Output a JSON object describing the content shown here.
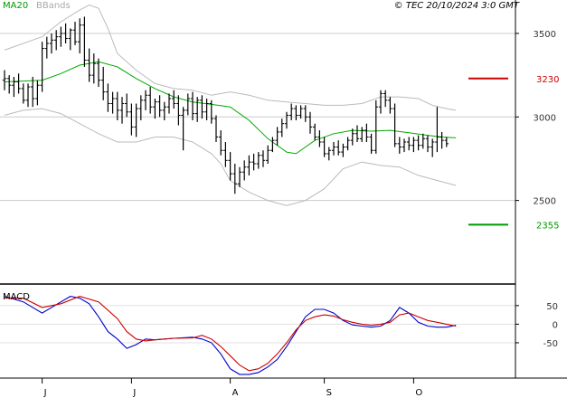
{
  "header": {
    "indicator_main": "MA20",
    "indicator_secondary": "BBands",
    "copyright": "© TEC 20/10/2024 3:0 GMT",
    "macd_label": "MACD"
  },
  "chart_data": [
    {
      "type": "line",
      "name": "price-panel",
      "x_tick_labels": [
        "J",
        "J",
        "A",
        "S",
        "O"
      ],
      "y_tick_labels": [
        "3500",
        "3000",
        "2500"
      ],
      "y_ticks": [
        3500,
        3000,
        2500
      ],
      "ylim": [
        2000,
        3700
      ],
      "levels": [
        {
          "value": 3230,
          "label": "3230",
          "color": "#cc0000"
        },
        {
          "value": 2355,
          "label": "2355",
          "color": "#009900"
        }
      ],
      "colors": {
        "candles": "#000000",
        "ma20": "#00aa00",
        "bbands": "#bbbbbb"
      },
      "ohlc": [
        [
          3220,
          3280,
          3160,
          3230
        ],
        [
          3230,
          3250,
          3140,
          3190
        ],
        [
          3190,
          3240,
          3120,
          3210
        ],
        [
          3210,
          3260,
          3140,
          3170
        ],
        [
          3170,
          3200,
          3080,
          3100
        ],
        [
          3100,
          3200,
          3060,
          3180
        ],
        [
          3180,
          3240,
          3060,
          3110
        ],
        [
          3110,
          3220,
          3070,
          3190
        ],
        [
          3190,
          3450,
          3150,
          3410
        ],
        [
          3410,
          3480,
          3350,
          3440
        ],
        [
          3440,
          3500,
          3380,
          3460
        ],
        [
          3460,
          3520,
          3400,
          3480
        ],
        [
          3480,
          3540,
          3420,
          3500
        ],
        [
          3500,
          3560,
          3440,
          3470
        ],
        [
          3470,
          3530,
          3400,
          3520
        ],
        [
          3520,
          3570,
          3430,
          3450
        ],
        [
          3450,
          3590,
          3380,
          3550
        ],
        [
          3550,
          3600,
          3300,
          3340
        ],
        [
          3340,
          3410,
          3210,
          3250
        ],
        [
          3250,
          3380,
          3200,
          3320
        ],
        [
          3320,
          3350,
          3180,
          3220
        ],
        [
          3220,
          3300,
          3100,
          3150
        ],
        [
          3150,
          3200,
          3030,
          3080
        ],
        [
          3080,
          3150,
          3020,
          3110
        ],
        [
          3110,
          3150,
          2980,
          3040
        ],
        [
          3040,
          3120,
          2960,
          3080
        ],
        [
          3080,
          3140,
          3000,
          3030
        ],
        [
          3030,
          3080,
          2890,
          2940
        ],
        [
          2940,
          3080,
          2880,
          3050
        ],
        [
          3050,
          3130,
          2980,
          3100
        ],
        [
          3100,
          3160,
          3040,
          3130
        ],
        [
          3130,
          3180,
          3020,
          3060
        ],
        [
          3060,
          3110,
          2990,
          3090
        ],
        [
          3090,
          3130,
          3000,
          3040
        ],
        [
          3040,
          3090,
          2980,
          3060
        ],
        [
          3060,
          3140,
          3020,
          3110
        ],
        [
          3110,
          3160,
          3050,
          3080
        ],
        [
          3080,
          3130,
          2950,
          3010
        ],
        [
          3010,
          3060,
          2800,
          3040
        ],
        [
          3040,
          3140,
          3010,
          3110
        ],
        [
          3110,
          3150,
          2980,
          3020
        ],
        [
          3020,
          3120,
          2970,
          3100
        ],
        [
          3100,
          3130,
          2990,
          3030
        ],
        [
          3030,
          3110,
          2980,
          3080
        ],
        [
          3080,
          3100,
          2960,
          2990
        ],
        [
          2990,
          3010,
          2850,
          2880
        ],
        [
          2880,
          2920,
          2770,
          2800
        ],
        [
          2800,
          2850,
          2700,
          2740
        ],
        [
          2740,
          2790,
          2620,
          2660
        ],
        [
          2660,
          2720,
          2540,
          2600
        ],
        [
          2600,
          2700,
          2580,
          2670
        ],
        [
          2670,
          2740,
          2620,
          2700
        ],
        [
          2700,
          2770,
          2650,
          2730
        ],
        [
          2730,
          2780,
          2680,
          2720
        ],
        [
          2720,
          2790,
          2690,
          2770
        ],
        [
          2770,
          2800,
          2700,
          2740
        ],
        [
          2740,
          2830,
          2720,
          2800
        ],
        [
          2800,
          2880,
          2790,
          2860
        ],
        [
          2860,
          2940,
          2830,
          2910
        ],
        [
          2910,
          2990,
          2880,
          2960
        ],
        [
          2960,
          3030,
          2930,
          3010
        ],
        [
          3010,
          3080,
          2980,
          3050
        ],
        [
          3050,
          3070,
          2980,
          3010
        ],
        [
          3010,
          3070,
          2990,
          3050
        ],
        [
          3050,
          3070,
          2970,
          3000
        ],
        [
          3000,
          3030,
          2900,
          2940
        ],
        [
          2940,
          2960,
          2860,
          2880
        ],
        [
          2880,
          2920,
          2820,
          2850
        ],
        [
          2850,
          2880,
          2760,
          2780
        ],
        [
          2780,
          2820,
          2740,
          2800
        ],
        [
          2800,
          2850,
          2770,
          2820
        ],
        [
          2820,
          2860,
          2770,
          2790
        ],
        [
          2790,
          2840,
          2760,
          2820
        ],
        [
          2820,
          2880,
          2800,
          2860
        ],
        [
          2860,
          2930,
          2830,
          2900
        ],
        [
          2900,
          2950,
          2850,
          2870
        ],
        [
          2870,
          2940,
          2850,
          2920
        ],
        [
          2920,
          2960,
          2850,
          2880
        ],
        [
          2880,
          2900,
          2780,
          2800
        ],
        [
          2800,
          3100,
          2780,
          3060
        ],
        [
          3060,
          3160,
          3020,
          3140
        ],
        [
          3140,
          3160,
          3060,
          3100
        ],
        [
          3100,
          3120,
          3020,
          3050
        ],
        [
          3050,
          3080,
          2820,
          2840
        ],
        [
          2840,
          2880,
          2780,
          2820
        ],
        [
          2820,
          2870,
          2790,
          2850
        ],
        [
          2850,
          2880,
          2800,
          2830
        ],
        [
          2830,
          2880,
          2790,
          2860
        ],
        [
          2860,
          2890,
          2800,
          2830
        ],
        [
          2830,
          2900,
          2810,
          2870
        ],
        [
          2870,
          2890,
          2790,
          2820
        ],
        [
          2820,
          2870,
          2760,
          2850
        ],
        [
          2850,
          3060,
          2790,
          2880
        ],
        [
          2880,
          2910,
          2810,
          2860
        ],
        [
          2860,
          2880,
          2820,
          2840
        ]
      ],
      "ma20": [
        [
          0,
          3210
        ],
        [
          8,
          3220
        ],
        [
          12,
          3260
        ],
        [
          16,
          3310
        ],
        [
          20,
          3330
        ],
        [
          24,
          3300
        ],
        [
          28,
          3230
        ],
        [
          32,
          3170
        ],
        [
          36,
          3120
        ],
        [
          40,
          3090
        ],
        [
          44,
          3075
        ],
        [
          48,
          3060
        ],
        [
          52,
          2980
        ],
        [
          56,
          2870
        ],
        [
          60,
          2790
        ],
        [
          62,
          2780
        ],
        [
          66,
          2860
        ],
        [
          70,
          2900
        ],
        [
          74,
          2920
        ],
        [
          78,
          2915
        ],
        [
          82,
          2920
        ],
        [
          86,
          2905
        ],
        [
          90,
          2890
        ],
        [
          93,
          2880
        ],
        [
          96,
          2875
        ]
      ],
      "bb_upper": [
        [
          0,
          3400
        ],
        [
          8,
          3480
        ],
        [
          12,
          3570
        ],
        [
          16,
          3640
        ],
        [
          18,
          3670
        ],
        [
          20,
          3650
        ],
        [
          22,
          3530
        ],
        [
          24,
          3380
        ],
        [
          28,
          3280
        ],
        [
          32,
          3200
        ],
        [
          36,
          3170
        ],
        [
          40,
          3160
        ],
        [
          44,
          3130
        ],
        [
          48,
          3150
        ],
        [
          52,
          3130
        ],
        [
          56,
          3100
        ],
        [
          60,
          3090
        ],
        [
          64,
          3080
        ],
        [
          68,
          3070
        ],
        [
          72,
          3070
        ],
        [
          76,
          3080
        ],
        [
          80,
          3120
        ],
        [
          84,
          3120
        ],
        [
          88,
          3110
        ],
        [
          91,
          3070
        ],
        [
          94,
          3050
        ],
        [
          96,
          3040
        ]
      ],
      "bb_lower": [
        [
          0,
          3010
        ],
        [
          4,
          3040
        ],
        [
          8,
          3050
        ],
        [
          12,
          3020
        ],
        [
          16,
          2960
        ],
        [
          20,
          2900
        ],
        [
          24,
          2850
        ],
        [
          28,
          2850
        ],
        [
          32,
          2880
        ],
        [
          36,
          2880
        ],
        [
          40,
          2850
        ],
        [
          44,
          2780
        ],
        [
          46,
          2720
        ],
        [
          48,
          2620
        ],
        [
          52,
          2550
        ],
        [
          56,
          2500
        ],
        [
          60,
          2470
        ],
        [
          64,
          2500
        ],
        [
          68,
          2570
        ],
        [
          72,
          2690
        ],
        [
          76,
          2730
        ],
        [
          80,
          2710
        ],
        [
          84,
          2700
        ],
        [
          88,
          2650
        ],
        [
          92,
          2620
        ],
        [
          96,
          2590
        ]
      ]
    },
    {
      "type": "line",
      "name": "macd-panel",
      "y_tick_labels": [
        "50",
        "0",
        "-50"
      ],
      "y_ticks": [
        50,
        0,
        -50
      ],
      "ylim": [
        -145,
        108
      ],
      "series": [
        {
          "color": "#0000cc",
          "values": [
            [
              0,
              75
            ],
            [
              4,
              60
            ],
            [
              8,
              30
            ],
            [
              12,
              60
            ],
            [
              14,
              75
            ],
            [
              16,
              70
            ],
            [
              18,
              55
            ],
            [
              20,
              20
            ],
            [
              22,
              -20
            ],
            [
              24,
              -40
            ],
            [
              26,
              -65
            ],
            [
              28,
              -55
            ],
            [
              30,
              -40
            ],
            [
              32,
              -42
            ],
            [
              34,
              -40
            ],
            [
              36,
              -38
            ],
            [
              40,
              -35
            ],
            [
              42,
              -40
            ],
            [
              44,
              -50
            ],
            [
              46,
              -80
            ],
            [
              48,
              -120
            ],
            [
              50,
              -135
            ],
            [
              52,
              -135
            ],
            [
              54,
              -130
            ],
            [
              56,
              -115
            ],
            [
              58,
              -95
            ],
            [
              60,
              -60
            ],
            [
              62,
              -20
            ],
            [
              64,
              20
            ],
            [
              66,
              40
            ],
            [
              68,
              40
            ],
            [
              70,
              30
            ],
            [
              72,
              10
            ],
            [
              74,
              -2
            ],
            [
              76,
              -5
            ],
            [
              78,
              -8
            ],
            [
              80,
              -5
            ],
            [
              82,
              10
            ],
            [
              84,
              45
            ],
            [
              86,
              30
            ],
            [
              88,
              5
            ],
            [
              90,
              -5
            ],
            [
              92,
              -8
            ],
            [
              94,
              -8
            ],
            [
              96,
              -3
            ]
          ]
        },
        {
          "color": "#cc0000",
          "values": [
            [
              0,
              70
            ],
            [
              4,
              70
            ],
            [
              8,
              45
            ],
            [
              12,
              55
            ],
            [
              16,
              75
            ],
            [
              20,
              60
            ],
            [
              24,
              15
            ],
            [
              26,
              -20
            ],
            [
              28,
              -40
            ],
            [
              30,
              -45
            ],
            [
              32,
              -42
            ],
            [
              36,
              -38
            ],
            [
              40,
              -37
            ],
            [
              42,
              -30
            ],
            [
              44,
              -40
            ],
            [
              46,
              -60
            ],
            [
              48,
              -85
            ],
            [
              50,
              -110
            ],
            [
              52,
              -125
            ],
            [
              54,
              -120
            ],
            [
              56,
              -105
            ],
            [
              58,
              -80
            ],
            [
              60,
              -50
            ],
            [
              62,
              -15
            ],
            [
              64,
              10
            ],
            [
              66,
              20
            ],
            [
              68,
              25
            ],
            [
              70,
              22
            ],
            [
              72,
              12
            ],
            [
              74,
              5
            ],
            [
              76,
              0
            ],
            [
              78,
              -3
            ],
            [
              80,
              0
            ],
            [
              82,
              5
            ],
            [
              84,
              25
            ],
            [
              86,
              30
            ],
            [
              88,
              20
            ],
            [
              90,
              10
            ],
            [
              92,
              5
            ],
            [
              94,
              0
            ],
            [
              96,
              -5
            ]
          ]
        }
      ]
    }
  ]
}
